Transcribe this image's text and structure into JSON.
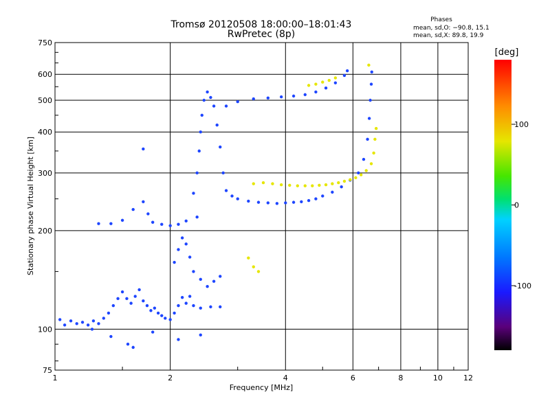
{
  "chart_data": {
    "type": "scatter",
    "title": "Tromsø 20120508 18:00:00–18:01:43",
    "subtitle": "RwPretec (8p)",
    "xlabel": "Frequency [MHz]",
    "ylabel": "Stationary phase Virtual Height [km]",
    "x_scale": "log",
    "y_scale": "log",
    "xlim": [
      1,
      12
    ],
    "ylim": [
      75,
      750
    ],
    "x_ticks": [
      1,
      2,
      4,
      6,
      8,
      10,
      12
    ],
    "y_ticks": [
      75,
      100,
      200,
      300,
      400,
      500,
      600,
      750
    ],
    "grid": true,
    "phases_box": {
      "title": "Phases",
      "line1": "mean, sd,O: −90.8, 15.1",
      "line2": "mean, sd,X:  89.8, 19.9"
    },
    "colorbar": {
      "label": "[deg]",
      "range": [
        -180,
        180
      ],
      "ticks": [
        100,
        0,
        -100
      ],
      "colormap": "rainbow"
    },
    "series": [
      {
        "name": "O",
        "phase_mean": -90.8,
        "points": [
          [
            1.03,
            107
          ],
          [
            1.06,
            103
          ],
          [
            1.1,
            106
          ],
          [
            1.14,
            104
          ],
          [
            1.18,
            105
          ],
          [
            1.22,
            103
          ],
          [
            1.26,
            106
          ],
          [
            1.3,
            104
          ],
          [
            1.34,
            108
          ],
          [
            1.38,
            112
          ],
          [
            1.42,
            118
          ],
          [
            1.46,
            124
          ],
          [
            1.5,
            130
          ],
          [
            1.54,
            124
          ],
          [
            1.58,
            120
          ],
          [
            1.62,
            126
          ],
          [
            1.66,
            132
          ],
          [
            1.7,
            122
          ],
          [
            1.74,
            118
          ],
          [
            1.78,
            114
          ],
          [
            1.82,
            116
          ],
          [
            1.86,
            112
          ],
          [
            1.9,
            110
          ],
          [
            1.94,
            108
          ],
          [
            2.0,
            107
          ],
          [
            2.05,
            112
          ],
          [
            2.1,
            118
          ],
          [
            2.15,
            125
          ],
          [
            2.2,
            120
          ],
          [
            2.25,
            126
          ],
          [
            2.3,
            118
          ],
          [
            2.4,
            116
          ],
          [
            2.55,
            117
          ],
          [
            2.7,
            117
          ],
          [
            1.4,
            210
          ],
          [
            1.5,
            215
          ],
          [
            1.6,
            232
          ],
          [
            1.7,
            245
          ],
          [
            1.75,
            225
          ],
          [
            1.8,
            212
          ],
          [
            1.9,
            209
          ],
          [
            2.0,
            207
          ],
          [
            2.1,
            209
          ],
          [
            2.2,
            214
          ],
          [
            2.35,
            220
          ],
          [
            2.05,
            160
          ],
          [
            2.1,
            175
          ],
          [
            2.15,
            190
          ],
          [
            2.2,
            182
          ],
          [
            2.25,
            166
          ],
          [
            2.3,
            150
          ],
          [
            2.4,
            142
          ],
          [
            2.5,
            135
          ],
          [
            2.6,
            140
          ],
          [
            2.7,
            145
          ],
          [
            2.3,
            260
          ],
          [
            2.35,
            300
          ],
          [
            2.38,
            350
          ],
          [
            2.4,
            400
          ],
          [
            2.42,
            450
          ],
          [
            2.45,
            500
          ],
          [
            2.5,
            530
          ],
          [
            2.55,
            510
          ],
          [
            2.6,
            480
          ],
          [
            2.65,
            420
          ],
          [
            2.7,
            360
          ],
          [
            2.75,
            300
          ],
          [
            2.8,
            265
          ],
          [
            2.9,
            255
          ],
          [
            3.0,
            250
          ],
          [
            3.2,
            246
          ],
          [
            3.4,
            244
          ],
          [
            3.6,
            243
          ],
          [
            3.8,
            242
          ],
          [
            4.0,
            243
          ],
          [
            4.2,
            244
          ],
          [
            4.4,
            245
          ],
          [
            4.6,
            247
          ],
          [
            4.8,
            250
          ],
          [
            5.0,
            255
          ],
          [
            5.3,
            262
          ],
          [
            5.6,
            272
          ],
          [
            5.9,
            285
          ],
          [
            6.2,
            300
          ],
          [
            6.4,
            330
          ],
          [
            6.55,
            380
          ],
          [
            6.62,
            440
          ],
          [
            6.66,
            500
          ],
          [
            6.7,
            560
          ],
          [
            6.72,
            610
          ],
          [
            2.8,
            480
          ],
          [
            3.0,
            495
          ],
          [
            3.3,
            505
          ],
          [
            3.6,
            508
          ],
          [
            3.9,
            512
          ],
          [
            4.2,
            515
          ],
          [
            4.5,
            520
          ],
          [
            4.8,
            530
          ],
          [
            5.1,
            545
          ],
          [
            5.4,
            565
          ],
          [
            5.7,
            595
          ],
          [
            5.8,
            615
          ],
          [
            1.7,
            355
          ],
          [
            1.3,
            210
          ],
          [
            1.4,
            95
          ],
          [
            1.55,
            90
          ],
          [
            1.8,
            98
          ],
          [
            2.1,
            93
          ],
          [
            2.4,
            96
          ],
          [
            1.25,
            100
          ],
          [
            1.6,
            88
          ]
        ]
      },
      {
        "name": "X",
        "phase_mean": 89.8,
        "points": [
          [
            3.3,
            278
          ],
          [
            3.5,
            280
          ],
          [
            3.7,
            278
          ],
          [
            3.9,
            276
          ],
          [
            4.1,
            275
          ],
          [
            4.3,
            274
          ],
          [
            4.5,
            274
          ],
          [
            4.7,
            274
          ],
          [
            4.9,
            275
          ],
          [
            5.1,
            276
          ],
          [
            5.3,
            278
          ],
          [
            5.5,
            280
          ],
          [
            5.7,
            283
          ],
          [
            5.9,
            286
          ],
          [
            6.1,
            290
          ],
          [
            6.3,
            296
          ],
          [
            6.5,
            305
          ],
          [
            6.7,
            320
          ],
          [
            6.8,
            345
          ],
          [
            6.85,
            380
          ],
          [
            6.9,
            410
          ],
          [
            4.6,
            555
          ],
          [
            4.8,
            560
          ],
          [
            5.0,
            568
          ],
          [
            5.2,
            575
          ],
          [
            5.4,
            585
          ],
          [
            6.6,
            640
          ],
          [
            3.2,
            165
          ],
          [
            3.3,
            155
          ],
          [
            3.4,
            150
          ]
        ]
      }
    ],
    "colors": {
      "background": "#ffffff",
      "grid": "#000000",
      "o_trace": "#1e46ff",
      "x_trace": "#e6e600"
    }
  }
}
